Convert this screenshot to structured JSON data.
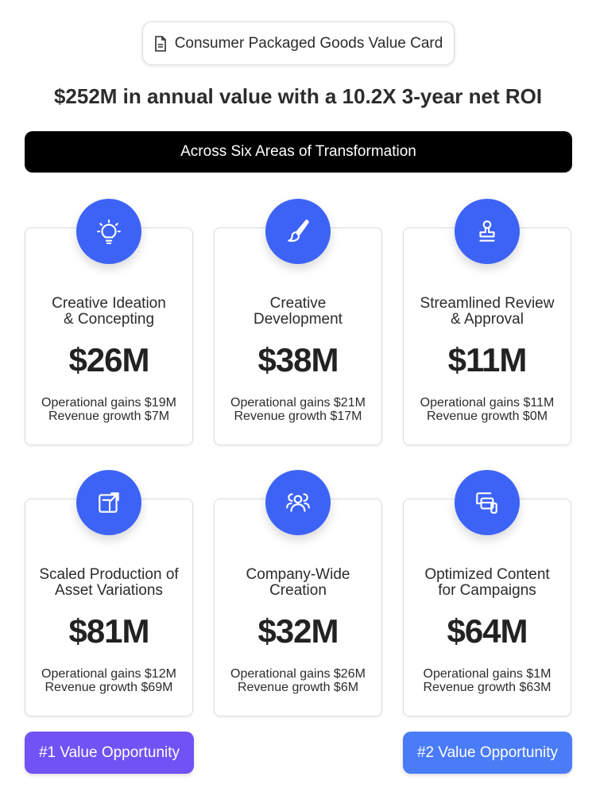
{
  "header": {
    "label": "Consumer Packaged Goods Value Card",
    "icon": "document-icon"
  },
  "headline": {
    "bold": "$252M",
    "rest": " in annual value with a 10.2X 3-year net ROI"
  },
  "banner": "Across Six Areas of Transformation",
  "colors": {
    "accent": "#3d63f6",
    "badge1": "#7152f5",
    "badge2": "#4a7cf8"
  },
  "cards": [
    {
      "icon": "lightbulb-icon",
      "title1": "Creative Ideation",
      "title2": "& Concepting",
      "value": "$26M",
      "ops": "Operational gains $19M",
      "rev": "Revenue growth $7M"
    },
    {
      "icon": "paintbrush-icon",
      "title1": "Creative",
      "title2": "Development",
      "value": "$38M",
      "ops": "Operational gains $21M",
      "rev": "Revenue growth $17M"
    },
    {
      "icon": "stamp-icon",
      "title1": "Streamlined Review",
      "title2": "& Approval",
      "value": "$11M",
      "ops": "Operational gains $11M",
      "rev": "Revenue growth $0M"
    },
    {
      "icon": "resize-icon",
      "title1": "Scaled Production of",
      "title2": "Asset Variations",
      "value": "$81M",
      "ops": "Operational gains $12M",
      "rev": "Revenue growth $69M"
    },
    {
      "icon": "users-icon",
      "title1": "Company-Wide",
      "title2": "Creation",
      "value": "$32M",
      "ops": "Operational gains $26M",
      "rev": "Revenue growth $6M"
    },
    {
      "icon": "devices-icon",
      "title1": "Optimized Content",
      "title2": "for Campaigns",
      "value": "$64M",
      "ops": "Operational gains $1M",
      "rev": "Revenue growth $63M"
    }
  ],
  "badges": [
    "#1 Value Opportunity",
    "#2 Value Opportunity"
  ]
}
